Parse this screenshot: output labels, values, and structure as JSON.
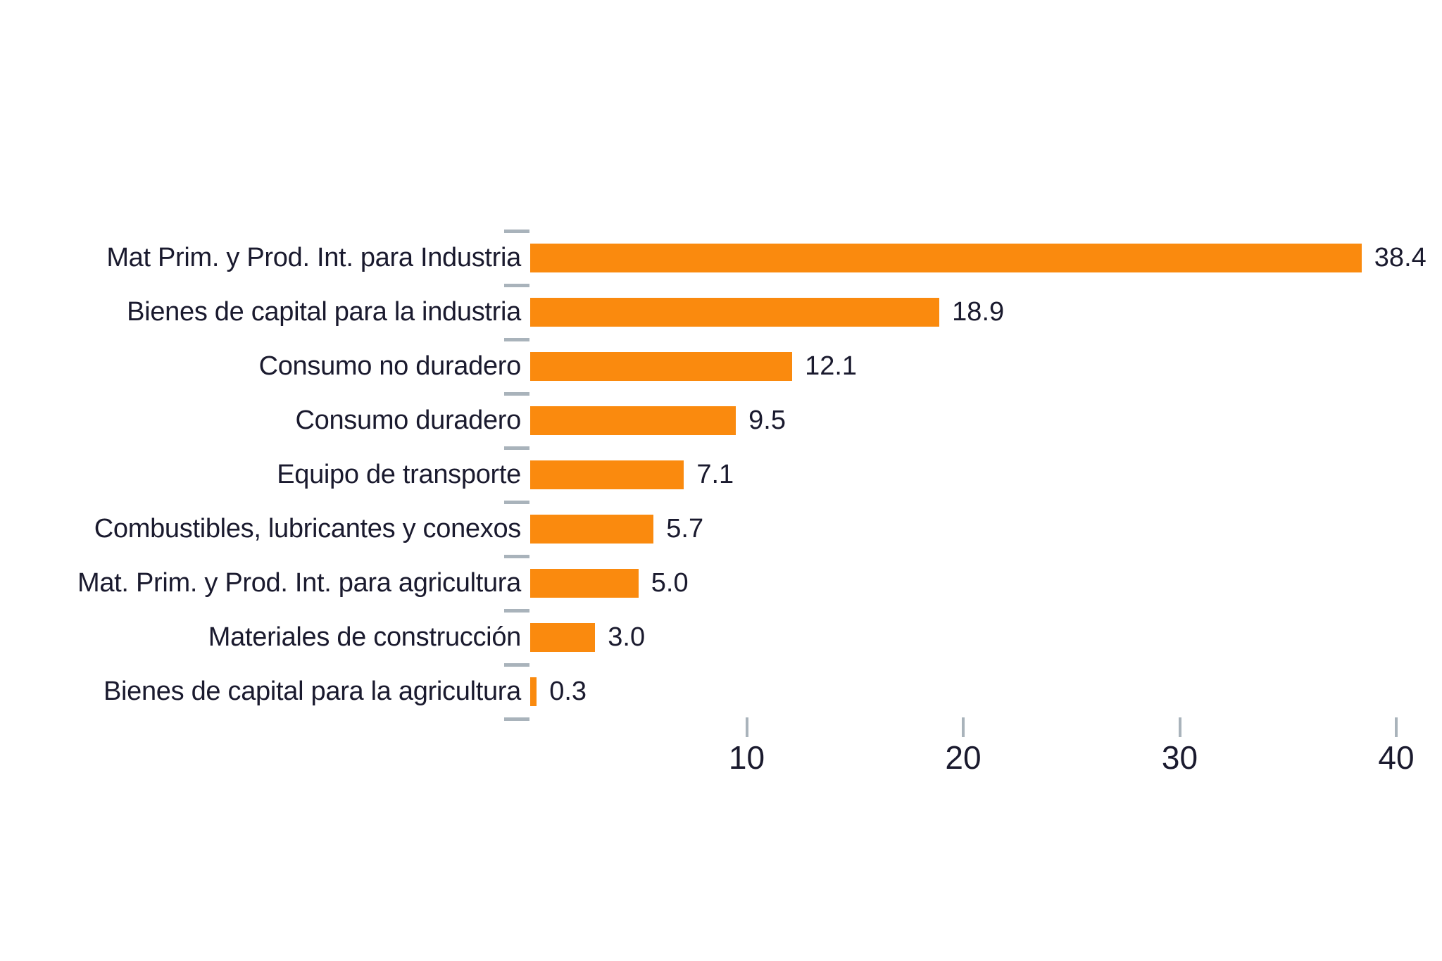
{
  "chart_data": {
    "type": "bar",
    "orientation": "horizontal",
    "title": "",
    "xlabel": "",
    "ylabel": "",
    "categories": [
      "Mat Prim. y Prod. Int. para Industria",
      "Bienes de capital para la industria",
      "Consumo no duradero",
      "Consumo duradero",
      "Equipo de transporte",
      "Combustibles, lubricantes y conexos",
      "Mat. Prim. y Prod. Int. para agricultura",
      "Materiales de construcción",
      "Bienes de capital para la agricultura"
    ],
    "values": [
      38.4,
      18.9,
      12.1,
      9.5,
      7.1,
      5.7,
      5.0,
      3.0,
      0.3
    ],
    "value_label_decimals": 1,
    "xlim": [
      0,
      40
    ],
    "x_ticks": [
      10,
      20,
      30,
      40
    ],
    "grid": false,
    "legend": false,
    "axis_lines": false,
    "colors": {
      "bar": "#FA8A0E",
      "text": "#1A1A2E",
      "tick_mark": "#A9B3BB",
      "background": "#FFFFFF"
    }
  }
}
